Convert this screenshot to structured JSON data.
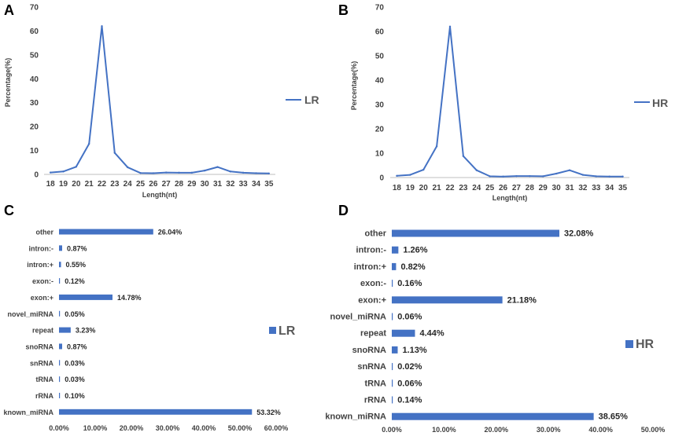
{
  "colors": {
    "series": "#4472C4",
    "bar": "#4472C4",
    "axis": "#BFBFBF",
    "text": "#404040"
  },
  "chart_data": [
    {
      "panel": "A",
      "type": "line",
      "title": "",
      "xlabel": "Length(nt)",
      "ylabel": "Percentage(%)",
      "x": [
        "18",
        "19",
        "20",
        "21",
        "22",
        "23",
        "24",
        "25",
        "26",
        "27",
        "28",
        "29",
        "30",
        "31",
        "32",
        "33",
        "34",
        "35"
      ],
      "series": [
        {
          "name": "LR",
          "values": [
            0.8,
            1.2,
            3.2,
            12.8,
            62,
            9,
            3,
            0.6,
            0.5,
            0.8,
            0.7,
            0.7,
            1.6,
            3.1,
            1.2,
            0.7,
            0.5,
            0.4
          ]
        }
      ],
      "ylim": [
        0,
        70
      ],
      "yticks": [
        0,
        10,
        20,
        30,
        40,
        50,
        60,
        70
      ],
      "legend": "right"
    },
    {
      "panel": "B",
      "type": "line",
      "title": "",
      "xlabel": "Length(nt)",
      "ylabel": "Percentage(%)",
      "x": [
        "18",
        "19",
        "20",
        "21",
        "22",
        "23",
        "24",
        "25",
        "26",
        "27",
        "28",
        "29",
        "30",
        "31",
        "32",
        "33",
        "34",
        "35"
      ],
      "series": [
        {
          "name": "HR",
          "values": [
            0.7,
            1.1,
            3.2,
            12.8,
            62,
            8.8,
            3,
            0.5,
            0.4,
            0.6,
            0.6,
            0.5,
            1.6,
            3,
            1.1,
            0.5,
            0.4,
            0.4
          ]
        }
      ],
      "ylim": [
        0,
        70
      ],
      "yticks": [
        0,
        10,
        20,
        30,
        40,
        50,
        60,
        70
      ],
      "legend": "right"
    },
    {
      "panel": "C",
      "type": "bar",
      "orientation": "horizontal",
      "title": "",
      "categories": [
        "other",
        "intron:-",
        "intron:+",
        "exon:-",
        "exon:+",
        "novel_miRNA",
        "repeat",
        "snoRNA",
        "snRNA",
        "tRNA",
        "rRNA",
        "known_miRNA"
      ],
      "series": [
        {
          "name": "LR",
          "values": [
            26.04,
            0.87,
            0.55,
            0.12,
            14.78,
            0.05,
            3.23,
            0.87,
            0.03,
            0.03,
            0.1,
            53.32
          ],
          "labels": [
            "26.04%",
            "0.87%",
            "0.55%",
            "0.12%",
            "14.78%",
            "0.05%",
            "3.23%",
            "0.87%",
            "0.03%",
            "0.03%",
            "0.10%",
            "53.32%"
          ]
        }
      ],
      "xlim": [
        0,
        60
      ],
      "xticks": [
        "0.00%",
        "10.00%",
        "20.00%",
        "30.00%",
        "40.00%",
        "50.00%",
        "60.00%"
      ],
      "legend": "right"
    },
    {
      "panel": "D",
      "type": "bar",
      "orientation": "horizontal",
      "title": "",
      "categories": [
        "other",
        "intron:-",
        "intron:+",
        "exon:-",
        "exon:+",
        "novel_miRNA",
        "repeat",
        "snoRNA",
        "snRNA",
        "tRNA",
        "rRNA",
        "known_miRNA"
      ],
      "series": [
        {
          "name": "HR",
          "values": [
            32.08,
            1.26,
            0.82,
            0.16,
            21.18,
            0.06,
            4.44,
            1.13,
            0.02,
            0.06,
            0.14,
            38.65
          ],
          "labels": [
            "32.08%",
            "1.26%",
            "0.82%",
            "0.16%",
            "21.18%",
            "0.06%",
            "4.44%",
            "1.13%",
            "0.02%",
            "0.06%",
            "0.14%",
            "38.65%"
          ]
        }
      ],
      "xlim": [
        0,
        50
      ],
      "xticks": [
        "0.00%",
        "10.00%",
        "20.00%",
        "30.00%",
        "40.00%",
        "50.00%"
      ],
      "legend": "right"
    }
  ]
}
